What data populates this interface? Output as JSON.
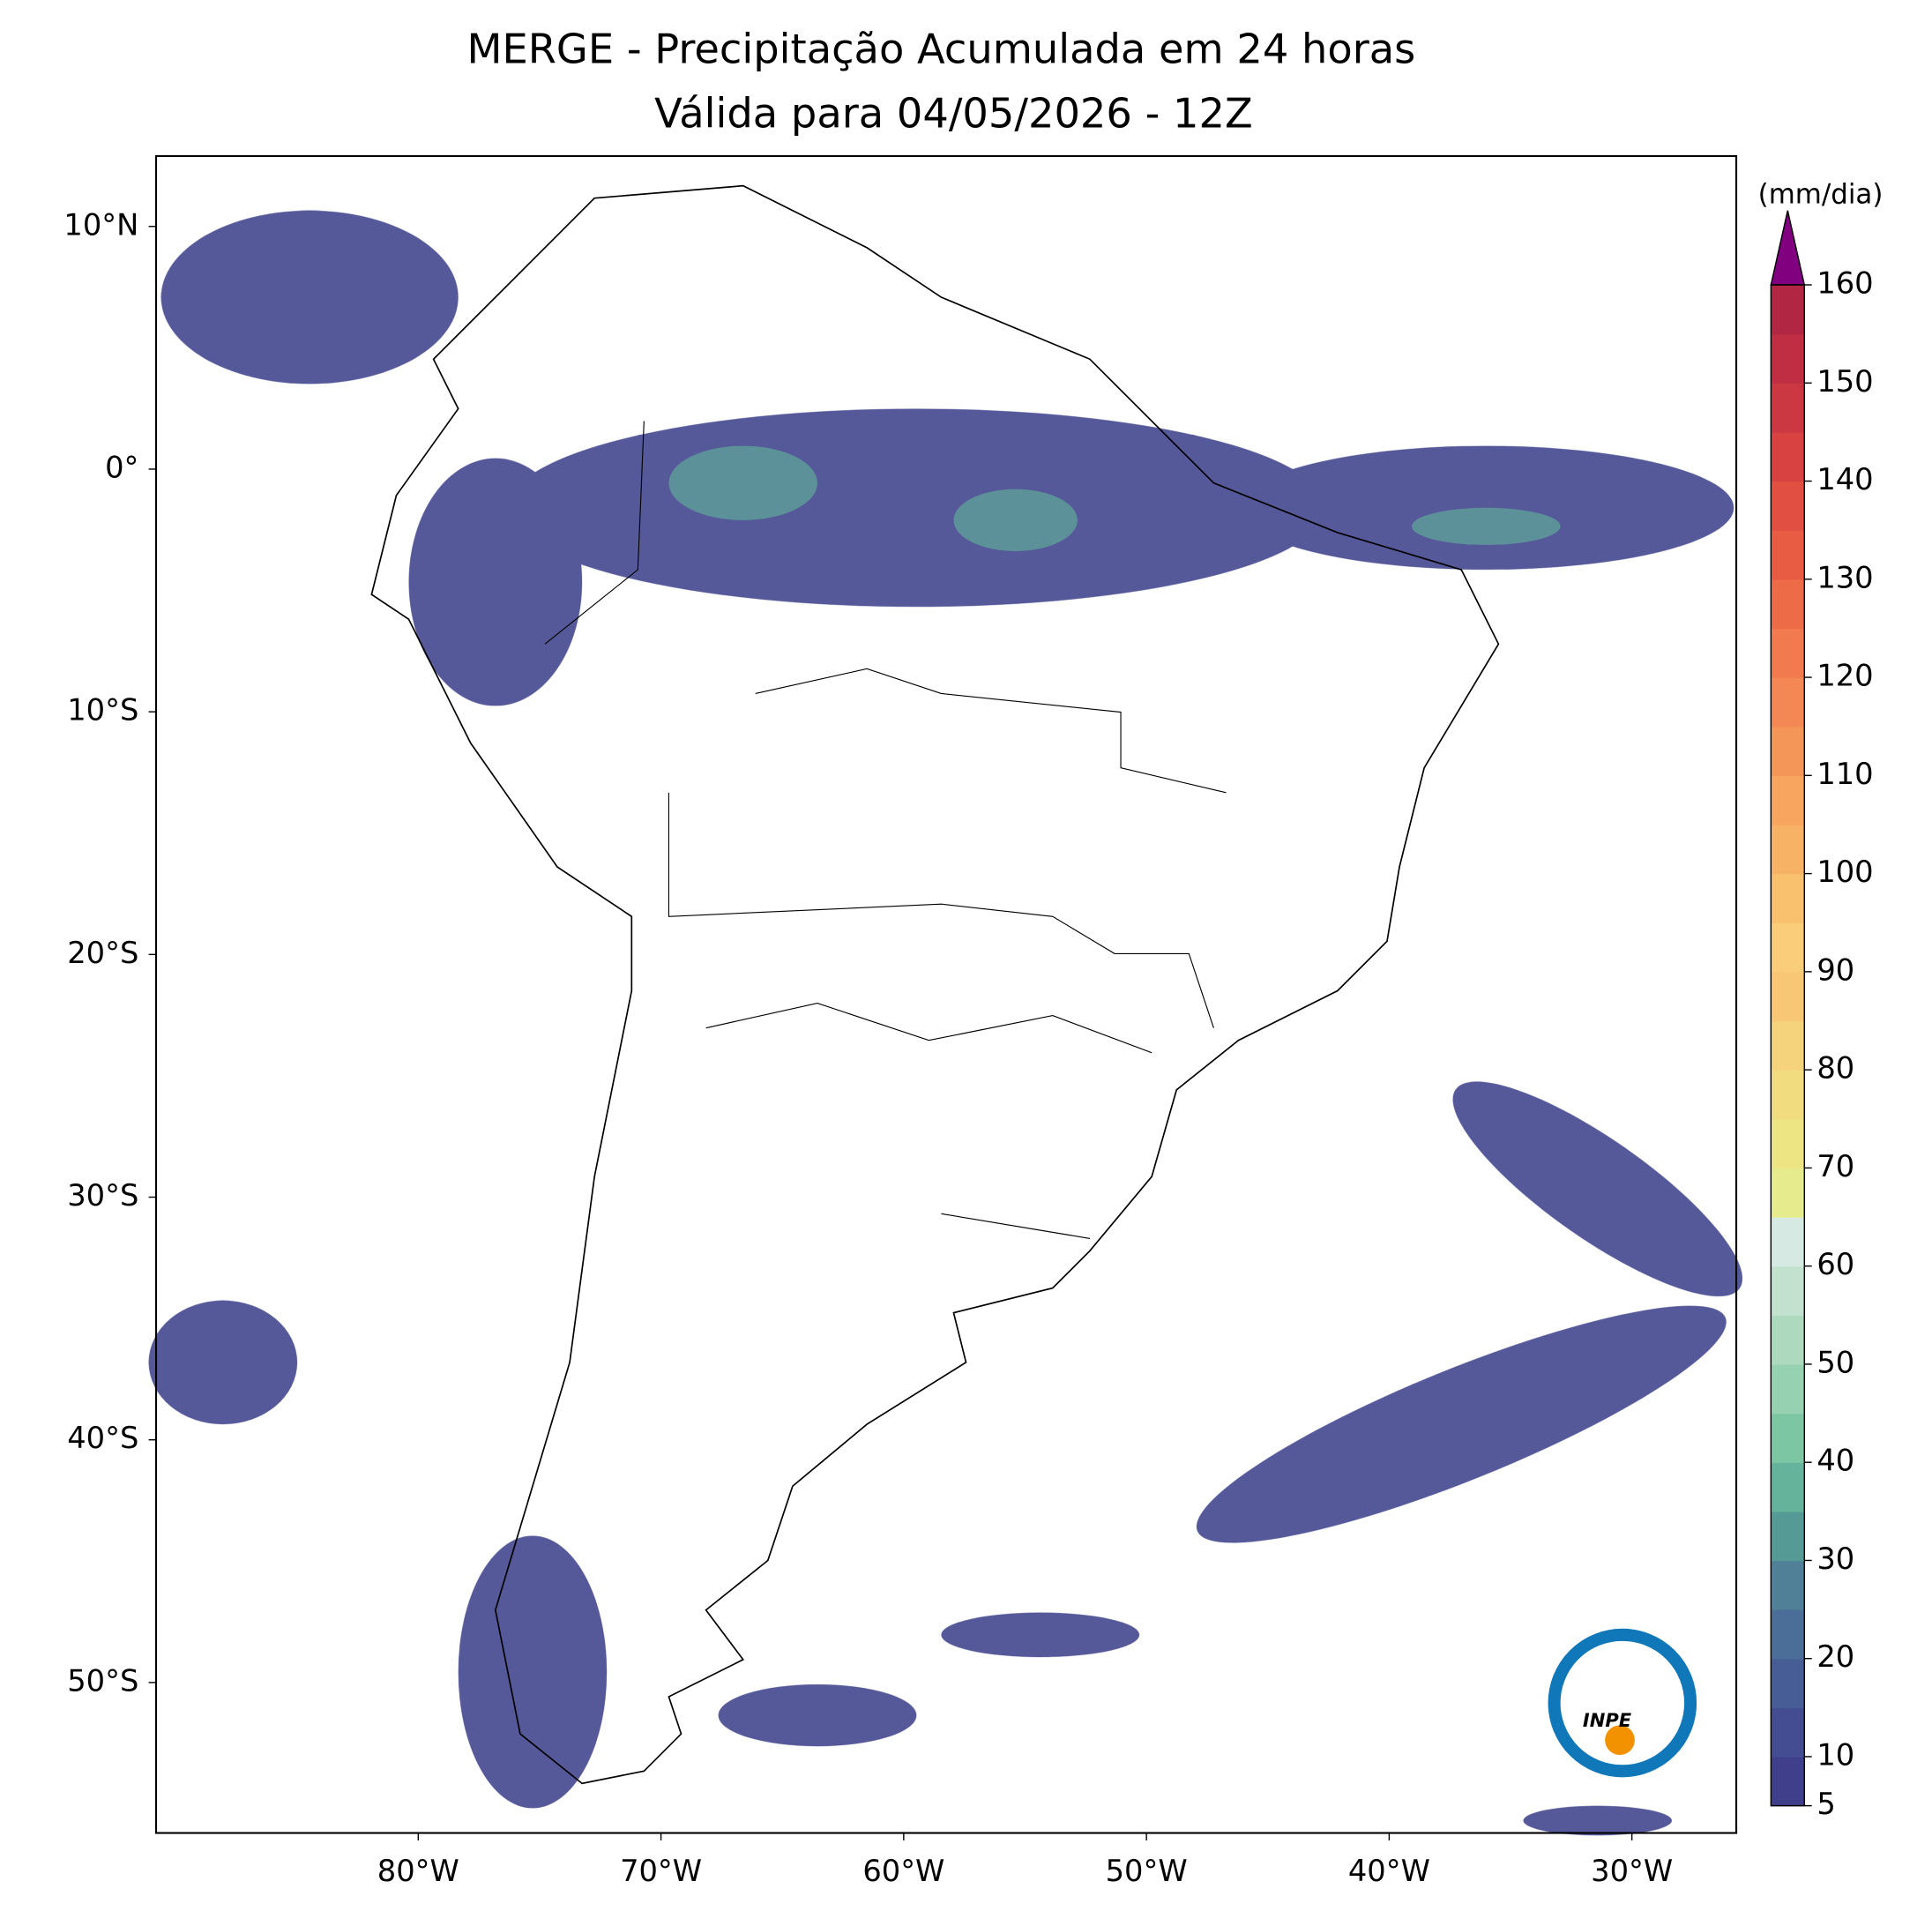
{
  "chart_data": {
    "type": "map",
    "title": "MERGE - Precipitação Acumulada em 24 horas",
    "subtitle": "Válida para 04/05/2026 - 12Z",
    "xlim": [
      -90.8,
      -25.7
    ],
    "ylim": [
      -56.2,
      12.9
    ],
    "xticks": [
      {
        "value": -80,
        "label": "80°W"
      },
      {
        "value": -70,
        "label": "70°W"
      },
      {
        "value": -60,
        "label": "60°W"
      },
      {
        "value": -50,
        "label": "50°W"
      },
      {
        "value": -40,
        "label": "40°W"
      },
      {
        "value": -30,
        "label": "30°W"
      }
    ],
    "yticks": [
      {
        "value": 10,
        "label": "10°N"
      },
      {
        "value": 0,
        "label": "0°"
      },
      {
        "value": -10,
        "label": "10°S"
      },
      {
        "value": -20,
        "label": "20°S"
      },
      {
        "value": -30,
        "label": "30°S"
      },
      {
        "value": -40,
        "label": "40°S"
      },
      {
        "value": -50,
        "label": "50°S"
      }
    ],
    "colorbar": {
      "label": "(mm/dia)",
      "extend_color": "#800080",
      "levels": [
        5,
        10,
        15,
        20,
        25,
        30,
        35,
        40,
        45,
        50,
        55,
        60,
        65,
        70,
        75,
        80,
        85,
        90,
        95,
        100,
        105,
        110,
        115,
        120,
        125,
        130,
        135,
        140,
        145,
        150,
        155,
        160
      ],
      "colors": [
        "#3f3f8c",
        "#444c92",
        "#475d96",
        "#4b6e99",
        "#4f8098",
        "#569a96",
        "#64b39a",
        "#7cc6a3",
        "#96d1b1",
        "#add9bf",
        "#c2e2cf",
        "#d6eae3",
        "#e6ec8e",
        "#ede583",
        "#f1dc80",
        "#f5d27c",
        "#f7c776",
        "#f9cd7a",
        "#f9c06e",
        "#f8b266",
        "#f7a55f",
        "#f59659",
        "#f38854",
        "#f17a4e",
        "#ee6b48",
        "#e85c44",
        "#e14f42",
        "#d84342",
        "#cc3842",
        "#bf2e43",
        "#b02643"
      ],
      "ticks": [
        5,
        10,
        20,
        30,
        40,
        50,
        60,
        70,
        80,
        90,
        100,
        110,
        120,
        130,
        140,
        150,
        160
      ]
    },
    "logo": "INPE"
  }
}
